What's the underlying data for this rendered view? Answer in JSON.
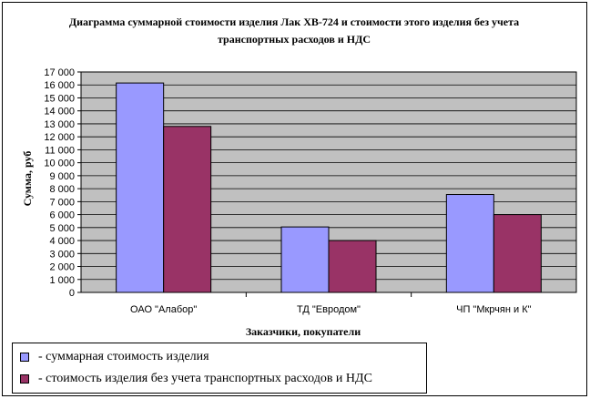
{
  "chart_data": {
    "type": "bar",
    "title": "Диаграмма суммарной стоимости изделия Лак ХВ-724 и стоимости этого изделия без учета транспортных расходов и НДС",
    "xlabel": "Заказчики, покупатели",
    "ylabel": "Сумма, руб",
    "categories": [
      "ОАО \"Алабор\"",
      "ТД \"Евродом\"",
      "ЧП \"Мкрчян и К\""
    ],
    "series": [
      {
        "name": "- суммарная стоимость изделия",
        "color": "#9999ff",
        "values": [
          16150,
          5050,
          7550
        ]
      },
      {
        "name": "- стоимость изделия без учета транспортных расходов и НДС",
        "color": "#993366",
        "values": [
          12800,
          4000,
          6000
        ]
      }
    ],
    "ylim": [
      0,
      17000
    ],
    "yticks": [
      "0",
      "1 000",
      "2 000",
      "3 000",
      "4 000",
      "5 000",
      "6 000",
      "7 000",
      "8 000",
      "9 000",
      "10 000",
      "11 000",
      "12 000",
      "13 000",
      "14 000",
      "15 000",
      "16 000",
      "17 000"
    ],
    "grid": true,
    "plot_background": "#c0c0c0",
    "legend_position": "bottom-left"
  }
}
